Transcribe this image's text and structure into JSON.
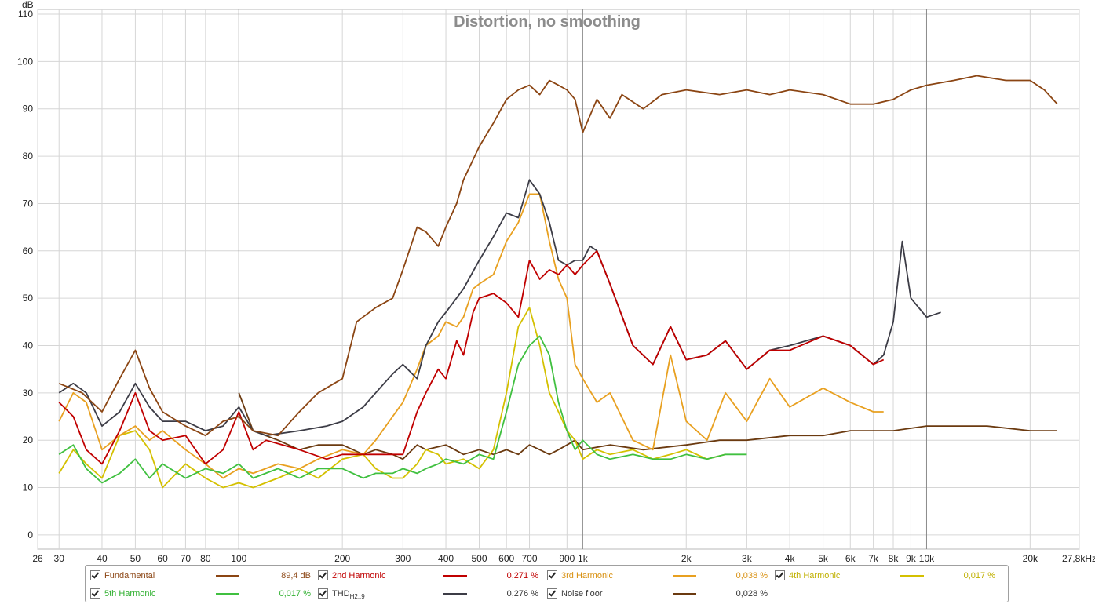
{
  "chart_data": {
    "type": "line",
    "title": "Distortion, no smoothing",
    "ylabel": "dB",
    "xlabel": "",
    "x_scale": "log",
    "xlim": [
      26,
      27800
    ],
    "ylim": [
      -3,
      111
    ],
    "grid": true,
    "y_ticks": [
      0,
      10,
      20,
      30,
      40,
      50,
      60,
      70,
      80,
      90,
      100,
      110
    ],
    "x_ticks": [
      {
        "v": 26,
        "t": "26"
      },
      {
        "v": 30,
        "t": "30"
      },
      {
        "v": 40,
        "t": "40"
      },
      {
        "v": 50,
        "t": "50"
      },
      {
        "v": 60,
        "t": "60"
      },
      {
        "v": 70,
        "t": "70"
      },
      {
        "v": 80,
        "t": "80"
      },
      {
        "v": 100,
        "t": "100"
      },
      {
        "v": 200,
        "t": "200"
      },
      {
        "v": 300,
        "t": "300"
      },
      {
        "v": 400,
        "t": "400"
      },
      {
        "v": 500,
        "t": "500"
      },
      {
        "v": 600,
        "t": "600"
      },
      {
        "v": 700,
        "t": "700"
      },
      {
        "v": 900,
        "t": "900"
      },
      {
        "v": 1000,
        "t": "1k"
      },
      {
        "v": 2000,
        "t": "2k"
      },
      {
        "v": 3000,
        "t": "3k"
      },
      {
        "v": 4000,
        "t": "4k"
      },
      {
        "v": 5000,
        "t": "5k"
      },
      {
        "v": 6000,
        "t": "6k"
      },
      {
        "v": 7000,
        "t": "7k"
      },
      {
        "v": 8000,
        "t": "8k"
      },
      {
        "v": 9000,
        "t": "9k"
      },
      {
        "v": 10000,
        "t": "10k"
      },
      {
        "v": 20000,
        "t": "20k"
      },
      {
        "v": 27800,
        "t": "27,8kHz"
      }
    ],
    "minor_grid_x": [
      90,
      800,
      900,
      60,
      70,
      80,
      40,
      50
    ],
    "series": [
      {
        "name": "Fundamental",
        "color": "#8b4513",
        "value": "89,4 dB",
        "x": [
          30,
          35,
          40,
          45,
          50,
          55,
          60,
          70,
          80,
          90,
          100,
          110,
          130,
          150,
          170,
          200,
          220,
          250,
          280,
          300,
          330,
          350,
          380,
          400,
          430,
          450,
          500,
          550,
          600,
          650,
          700,
          750,
          800,
          850,
          900,
          950,
          1000,
          1100,
          1200,
          1300,
          1500,
          1700,
          2000,
          2500,
          3000,
          3500,
          4000,
          5000,
          6000,
          7000,
          8000,
          9000,
          10000,
          12000,
          14000,
          17000,
          20000,
          22000,
          24000
        ],
        "y": [
          32,
          30,
          26,
          33,
          39,
          31,
          26,
          23,
          21,
          24,
          25,
          22,
          21,
          26,
          30,
          33,
          45,
          48,
          50,
          56,
          65,
          64,
          61,
          65,
          70,
          75,
          82,
          87,
          92,
          94,
          95,
          93,
          96,
          95,
          94,
          92,
          85,
          92,
          88,
          93,
          90,
          93,
          94,
          93,
          94,
          93,
          94,
          93,
          91,
          91,
          92,
          94,
          95,
          96,
          97,
          96,
          96,
          94,
          91
        ]
      },
      {
        "name": "THD",
        "sub": "H2..9",
        "color": "#3c3c46",
        "value": "0,276 %",
        "x": [
          30,
          33,
          36,
          40,
          45,
          50,
          55,
          60,
          70,
          80,
          90,
          100,
          110,
          120,
          150,
          180,
          200,
          230,
          250,
          280,
          300,
          330,
          350,
          380,
          400,
          450,
          500,
          550,
          600,
          650,
          700,
          750,
          800,
          850,
          900,
          950,
          1000,
          1050,
          1100,
          1200,
          1400,
          1600,
          1800,
          2000,
          2300,
          2600,
          3000,
          3500,
          4000,
          5000,
          6000,
          7000,
          7500,
          8000,
          8500,
          9000,
          10000,
          11000
        ],
        "y": [
          30,
          32,
          30,
          23,
          26,
          32,
          27,
          24,
          24,
          22,
          23,
          27,
          22,
          21,
          22,
          23,
          24,
          27,
          30,
          34,
          36,
          33,
          40,
          45,
          47,
          52,
          58,
          63,
          68,
          67,
          75,
          72,
          66,
          58,
          57,
          58,
          58,
          61,
          60,
          53,
          40,
          36,
          44,
          37,
          38,
          41,
          35,
          39,
          40,
          42,
          40,
          36,
          38,
          45,
          62,
          50,
          46,
          47
        ]
      },
      {
        "name": "2nd Harmonic",
        "color": "#c00000",
        "value": "0,271 %",
        "x": [
          30,
          33,
          36,
          40,
          45,
          50,
          55,
          60,
          70,
          80,
          90,
          100,
          110,
          120,
          150,
          180,
          200,
          230,
          250,
          280,
          300,
          330,
          350,
          380,
          400,
          430,
          450,
          480,
          500,
          550,
          600,
          650,
          700,
          750,
          800,
          850,
          900,
          950,
          1000,
          1100,
          1200,
          1400,
          1600,
          1800,
          2000,
          2300,
          2600,
          3000,
          3500,
          4000,
          5000,
          6000,
          7000,
          7500
        ],
        "y": [
          28,
          25,
          18,
          15,
          22,
          30,
          22,
          20,
          21,
          15,
          18,
          26,
          18,
          20,
          18,
          16,
          17,
          17,
          17,
          17,
          17,
          26,
          30,
          35,
          33,
          41,
          38,
          47,
          50,
          51,
          49,
          46,
          58,
          54,
          56,
          55,
          57,
          55,
          57,
          60,
          53,
          40,
          36,
          44,
          37,
          38,
          41,
          35,
          39,
          39,
          42,
          40,
          36,
          37
        ]
      },
      {
        "name": "3rd Harmonic",
        "color": "#e8a020",
        "value": "0,038 %",
        "x": [
          30,
          33,
          36,
          40,
          45,
          50,
          55,
          60,
          70,
          80,
          90,
          100,
          110,
          130,
          150,
          170,
          200,
          230,
          250,
          280,
          300,
          330,
          350,
          380,
          400,
          430,
          450,
          480,
          500,
          550,
          600,
          650,
          700,
          750,
          800,
          850,
          900,
          950,
          1000,
          1100,
          1200,
          1400,
          1600,
          1800,
          2000,
          2300,
          2600,
          3000,
          3500,
          4000,
          5000,
          6000,
          7000,
          7500
        ],
        "y": [
          24,
          30,
          28,
          18,
          21,
          23,
          20,
          22,
          18,
          15,
          12,
          14,
          13,
          15,
          14,
          16,
          18,
          17,
          20,
          25,
          28,
          35,
          40,
          42,
          45,
          44,
          46,
          52,
          53,
          55,
          62,
          66,
          72,
          72,
          62,
          54,
          50,
          36,
          33,
          28,
          30,
          20,
          18,
          38,
          24,
          20,
          30,
          24,
          33,
          27,
          31,
          28,
          26,
          26
        ]
      },
      {
        "name": "4th Harmonic",
        "color": "#d4c000",
        "value": "0,017 %",
        "x": [
          30,
          33,
          36,
          40,
          45,
          50,
          55,
          60,
          70,
          80,
          90,
          100,
          110,
          130,
          150,
          170,
          200,
          230,
          250,
          280,
          300,
          330,
          350,
          380,
          400,
          450,
          500,
          550,
          600,
          650,
          700,
          750,
          800,
          850,
          900,
          950,
          1000,
          1100,
          1200,
          1400,
          1600,
          1800,
          2000,
          2300,
          2600
        ],
        "y": [
          13,
          18,
          15,
          12,
          21,
          22,
          18,
          10,
          15,
          12,
          10,
          11,
          10,
          12,
          14,
          12,
          16,
          17,
          14,
          12,
          12,
          15,
          18,
          17,
          15,
          16,
          14,
          18,
          30,
          44,
          48,
          40,
          30,
          26,
          22,
          20,
          16,
          18,
          17,
          18,
          16,
          17,
          18,
          16,
          17
        ]
      },
      {
        "name": "5th Harmonic",
        "color": "#40c040",
        "value": "0,017 %",
        "x": [
          30,
          33,
          36,
          40,
          45,
          50,
          55,
          60,
          70,
          80,
          90,
          100,
          110,
          130,
          150,
          170,
          200,
          230,
          250,
          280,
          300,
          330,
          350,
          380,
          400,
          450,
          500,
          550,
          600,
          650,
          700,
          750,
          800,
          850,
          900,
          950,
          1000,
          1100,
          1200,
          1400,
          1600,
          1800,
          2000,
          2300,
          2600,
          3000
        ],
        "y": [
          17,
          19,
          14,
          11,
          13,
          16,
          12,
          15,
          12,
          14,
          13,
          15,
          12,
          14,
          12,
          14,
          14,
          12,
          13,
          13,
          14,
          13,
          14,
          15,
          16,
          15,
          17,
          16,
          26,
          36,
          40,
          42,
          38,
          28,
          22,
          18,
          20,
          17,
          16,
          17,
          16,
          16,
          17,
          16,
          17,
          17
        ]
      },
      {
        "name": "Noise floor",
        "color": "#6b3a10",
        "value": "0,028 %",
        "x": [
          100,
          110,
          130,
          150,
          170,
          200,
          230,
          250,
          280,
          300,
          330,
          350,
          400,
          450,
          500,
          550,
          600,
          650,
          700,
          750,
          800,
          850,
          900,
          950,
          1000,
          1200,
          1500,
          2000,
          2500,
          3000,
          4000,
          5000,
          6000,
          7000,
          8000,
          10000,
          12000,
          15000,
          20000,
          24000
        ],
        "y": [
          30,
          22,
          20,
          18,
          19,
          19,
          17,
          18,
          17,
          16,
          19,
          18,
          19,
          17,
          18,
          17,
          18,
          17,
          19,
          18,
          17,
          18,
          19,
          20,
          18,
          19,
          18,
          19,
          20,
          20,
          21,
          21,
          22,
          22,
          22,
          23,
          23,
          23,
          22,
          22
        ]
      },
      {
        "name": "",
        "color": "#d8d8d8",
        "value": "",
        "x": [
          30,
          35,
          40,
          45,
          50,
          55,
          60,
          70,
          80,
          90,
          100,
          110,
          130,
          150,
          170,
          200,
          230,
          250,
          280,
          300,
          330,
          350,
          400,
          450,
          500,
          550,
          600,
          700,
          800,
          900,
          1000,
          1200,
          1500,
          2000,
          2500,
          3000,
          4000,
          4500,
          5000,
          5500
        ],
        "y": [
          11,
          8,
          4,
          9,
          12,
          7,
          11,
          5,
          10,
          9,
          11,
          5,
          8,
          4,
          9,
          11,
          10,
          12,
          11,
          7,
          12,
          13,
          13,
          14,
          15,
          16,
          15,
          17,
          18,
          16,
          17,
          16,
          15,
          14,
          15,
          16,
          14,
          12,
          16,
          15
        ]
      }
    ]
  },
  "legend": {
    "items": [
      {
        "label": "Fundamental",
        "value": "89,4 dB",
        "color": "#8b4513",
        "text_color": "#8b4513"
      },
      {
        "label": "2nd Harmonic",
        "value": "0,271 %",
        "color": "#c00000",
        "text_color": "#c00000"
      },
      {
        "label": "3rd Harmonic",
        "value": "0,038 %",
        "color": "#e8a020",
        "text_color": "#d89010"
      },
      {
        "label": "4th Harmonic",
        "value": "0,017 %",
        "color": "#d4c000",
        "text_color": "#c0b000"
      },
      {
        "label": "5th Harmonic",
        "value": "0,017 %",
        "color": "#40c040",
        "text_color": "#30b030"
      },
      {
        "label": "THD",
        "sub": "H2..9",
        "value": "0,276 %",
        "color": "#3c3c46",
        "text_color": "#333333"
      },
      {
        "label": "Noise floor",
        "value": "0,028 %",
        "color": "#6b3a10",
        "text_color": "#333333"
      }
    ]
  }
}
